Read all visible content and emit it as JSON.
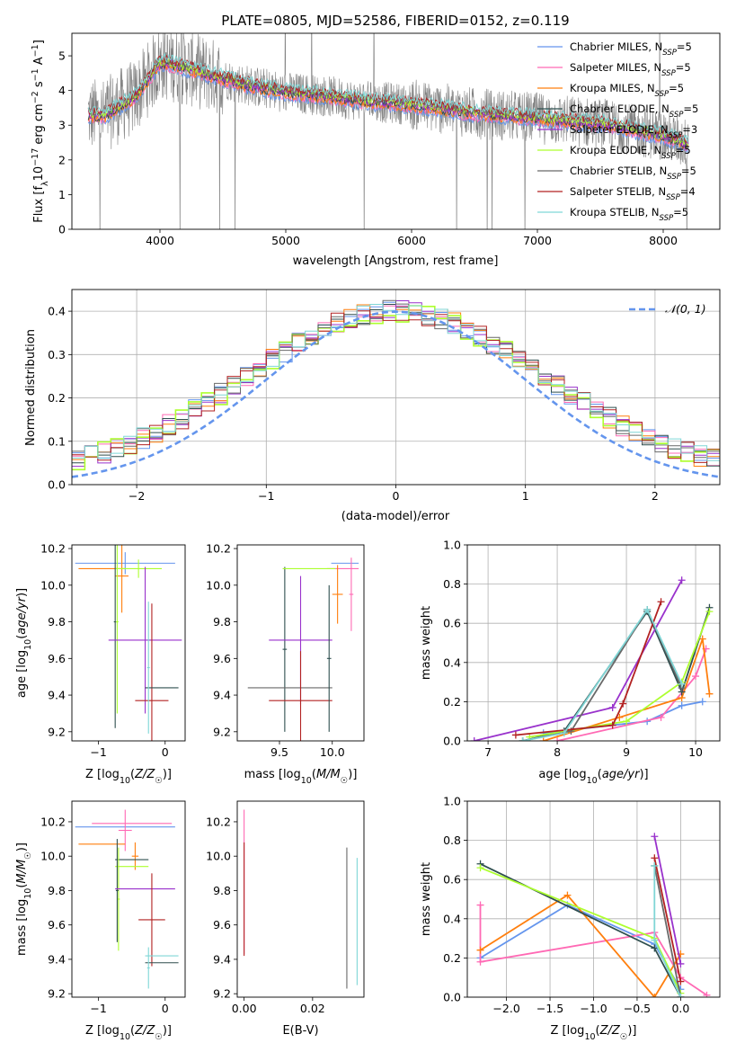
{
  "figure_title": "PLATE=0805, MJD=52586, FIBERID=0152, z=0.119",
  "colors": {
    "chabrier_miles": "#6495ed",
    "salpeter_miles": "#ff69b4",
    "kroupa_miles": "#ff7f0e",
    "chabrier_elodie": "#2f4f4f",
    "salpeter_elodie": "#9932cc",
    "kroupa_elodie": "#adff2f",
    "chabrier_stelib": "#696969",
    "salpeter_stelib": "#b22222",
    "kroupa_stelib": "#7fd6d6",
    "data": "#808080",
    "normal_curve": "#6495ed",
    "grid": "#b0b0b0"
  },
  "chart_data": [
    {
      "type": "line",
      "id": "spectrum",
      "xlabel": "wavelength [Angstrom, rest frame]",
      "ylabel": "Flux [f_λ 10^-17 erg cm^-2 s^-1 A^-1]",
      "xlim": [
        3300,
        8450
      ],
      "ylim": [
        0,
        5.65
      ],
      "xticks": [
        4000,
        5000,
        6000,
        7000,
        8000
      ],
      "yticks": [
        0,
        1,
        2,
        3,
        4,
        5
      ],
      "grid": false,
      "legend": "right",
      "continuum_x": [
        3430,
        3550,
        3700,
        3800,
        3900,
        3950,
        4000,
        4100,
        4300,
        4500,
        4700,
        5000,
        5300,
        5600,
        6000,
        6500,
        7000,
        7500,
        8000,
        8200
      ],
      "continuum_y": [
        3.3,
        3.25,
        3.6,
        3.8,
        4.3,
        4.55,
        4.8,
        4.75,
        4.55,
        4.35,
        4.15,
        3.95,
        3.85,
        3.7,
        3.6,
        3.35,
        3.2,
        3.05,
        2.7,
        2.45
      ],
      "series": [
        {
          "name": "Chabrier MILES, N_SSP=5",
          "label": "Chabrier MILES, N",
          "sub": "SSP",
          "suffix": "=5",
          "color_key": "chabrier_miles"
        },
        {
          "name": "Salpeter MILES, N_SSP=5",
          "label": "Salpeter MILES, N",
          "sub": "SSP",
          "suffix": "=5",
          "color_key": "salpeter_miles"
        },
        {
          "name": "Kroupa MILES, N_SSP=5",
          "label": "Kroupa MILES, N",
          "sub": "SSP",
          "suffix": "=5",
          "color_key": "kroupa_miles"
        },
        {
          "name": "Chabrier ELODIE, N_SSP=5",
          "label": "Chabrier ELODIE, N",
          "sub": "SSP",
          "suffix": "=5",
          "color_key": "chabrier_elodie"
        },
        {
          "name": "Salpeter ELODIE, N_SSP=3",
          "label": "Salpeter ELODIE, N",
          "sub": "SSP",
          "suffix": "=3",
          "color_key": "salpeter_elodie"
        },
        {
          "name": "Kroupa ELODIE, N_SSP=5",
          "label": "Kroupa ELODIE, N",
          "sub": "SSP",
          "suffix": "=5",
          "color_key": "kroupa_elodie"
        },
        {
          "name": "Chabrier STELIB, N_SSP=5",
          "label": "Chabrier STELIB, N",
          "sub": "SSP",
          "suffix": "=5",
          "color_key": "chabrier_stelib"
        },
        {
          "name": "Salpeter STELIB, N_SSP=4",
          "label": "Salpeter STELIB, N",
          "sub": "SSP",
          "suffix": "=4",
          "color_key": "salpeter_stelib"
        },
        {
          "name": "Kroupa STELIB, N_SSP=5",
          "label": "Kroupa STELIB, N",
          "sub": "SSP",
          "suffix": "=5",
          "color_key": "kroupa_stelib"
        }
      ]
    },
    {
      "type": "histogram",
      "id": "residuals",
      "xlabel": "(data-model)/error",
      "ylabel": "Normed distribution",
      "xlim": [
        -2.5,
        2.5
      ],
      "ylim": [
        0,
        0.45
      ],
      "xticks": [
        -2,
        -1,
        0,
        1,
        2
      ],
      "yticks": [
        0.0,
        0.1,
        0.2,
        0.3,
        0.4
      ],
      "grid": true,
      "legend": "top-right",
      "normal_label": "N(0,1)",
      "bin_width": 0.1,
      "x_start": -2.5
    },
    {
      "type": "errorbar",
      "id": "age_vs_z",
      "xlabel": "Z [log10(Z/Z☉)]",
      "ylabel": "age [log10(age/yr)]",
      "xlim": [
        -1.4,
        0.3
      ],
      "ylim": [
        9.15,
        10.22
      ],
      "xticks": [
        -1,
        0
      ],
      "yticks": [
        9.2,
        9.4,
        9.6,
        9.8,
        10.0,
        10.2
      ],
      "grid": false,
      "points": [
        {
          "x": -0.6,
          "xerr": 0.75,
          "y": 10.12,
          "yerr": 0.06,
          "color_key": "chabrier_miles"
        },
        {
          "x": -0.95,
          "xerr": 0.35,
          "y": 10.09,
          "yerr": 0.0,
          "color_key": "kroupa_miles"
        },
        {
          "x": -0.65,
          "xerr": 0.1,
          "y": 10.05,
          "yerr": 0.2,
          "color_key": "kroupa_miles"
        },
        {
          "x": -0.4,
          "xerr": 0.35,
          "y": 10.09,
          "yerr": 0.05,
          "color_key": "kroupa_elodie"
        },
        {
          "x": -0.75,
          "xerr": 0.02,
          "y": 9.8,
          "yerr": 0.58,
          "color_key": "chabrier_elodie"
        },
        {
          "x": -0.72,
          "xerr": 0.02,
          "y": 9.8,
          "yerr": 0.5,
          "color_key": "kroupa_elodie"
        },
        {
          "x": -0.3,
          "xerr": 0.55,
          "y": 9.7,
          "yerr": 0.4,
          "color_key": "salpeter_elodie"
        },
        {
          "x": -0.2,
          "xerr": 0.25,
          "y": 9.37,
          "yerr": 0.53,
          "color_key": "salpeter_stelib"
        },
        {
          "x": -0.05,
          "xerr": 0.25,
          "y": 9.44,
          "yerr": 0.0,
          "color_key": "chabrier_elodie"
        },
        {
          "x": -0.25,
          "xerr": 0.02,
          "y": 9.55,
          "yerr": 0.36,
          "color_key": "kroupa_stelib"
        }
      ]
    },
    {
      "type": "errorbar",
      "id": "age_vs_mass",
      "xlabel": "mass [log10(M/M☉)]",
      "ylabel": "",
      "xlim": [
        9.1,
        10.3
      ],
      "ylim": [
        9.15,
        10.22
      ],
      "xticks": [
        9.5,
        10.0
      ],
      "yticks": [
        9.2,
        9.4,
        9.6,
        9.8,
        10.0,
        10.2
      ],
      "grid": false,
      "points": [
        {
          "x": 10.12,
          "xerr": 0.13,
          "y": 10.12,
          "yerr": 0.0,
          "color_key": "chabrier_miles"
        },
        {
          "x": 10.1,
          "xerr": 0.15,
          "y": 10.09,
          "yerr": 0.0,
          "color_key": "salpeter_miles"
        },
        {
          "x": 10.05,
          "xerr": 0.05,
          "y": 9.95,
          "yerr": 0.16,
          "color_key": "kroupa_miles"
        },
        {
          "x": 9.55,
          "xerr": 0.02,
          "y": 9.65,
          "yerr": 0.45,
          "color_key": "chabrier_elodie"
        },
        {
          "x": 9.78,
          "xerr": 0.25,
          "y": 10.09,
          "yerr": 0.0,
          "color_key": "kroupa_elodie"
        },
        {
          "x": 9.7,
          "xerr": 0.3,
          "y": 9.7,
          "yerr": 0.35,
          "color_key": "salpeter_elodie"
        },
        {
          "x": 9.6,
          "xerr": 0.4,
          "y": 9.44,
          "yerr": 0.0,
          "color_key": "chabrier_stelib"
        },
        {
          "x": 9.7,
          "xerr": 0.3,
          "y": 9.37,
          "yerr": 0.27,
          "color_key": "salpeter_stelib"
        },
        {
          "x": 10.18,
          "xerr": 0.02,
          "y": 9.95,
          "yerr": 0.2,
          "color_key": "salpeter_miles"
        },
        {
          "x": 9.97,
          "xerr": 0.02,
          "y": 9.6,
          "yerr": 0.4,
          "color_key": "chabrier_elodie"
        }
      ]
    },
    {
      "type": "line",
      "id": "weight_vs_age",
      "xlabel": "age [log10(age/yr)]",
      "ylabel": "mass weight",
      "xlim": [
        6.7,
        10.35
      ],
      "ylim": [
        0,
        1.0
      ],
      "xticks": [
        7,
        8,
        9,
        10
      ],
      "yticks": [
        0.0,
        0.2,
        0.4,
        0.6,
        0.8,
        1.0
      ],
      "grid": true,
      "series": [
        {
          "color_key": "chabrier_miles",
          "x": [
            7.8,
            9.3,
            9.8,
            10.1
          ],
          "y": [
            0.04,
            0.1,
            0.18,
            0.2
          ]
        },
        {
          "color_key": "salpeter_miles",
          "x": [
            8.0,
            9.5,
            10.0,
            10.15
          ],
          "y": [
            0.0,
            0.12,
            0.33,
            0.47
          ]
        },
        {
          "color_key": "kroupa_miles",
          "x": [
            7.8,
            8.9,
            9.8,
            10.1,
            10.2
          ],
          "y": [
            0.0,
            0.12,
            0.22,
            0.52,
            0.24
          ]
        },
        {
          "color_key": "chabrier_elodie",
          "x": [
            7.5,
            8.1,
            9.3,
            9.8,
            10.2
          ],
          "y": [
            0.0,
            0.05,
            0.66,
            0.25,
            0.68
          ]
        },
        {
          "color_key": "salpeter_elodie",
          "x": [
            6.8,
            8.8,
            9.8
          ],
          "y": [
            0.0,
            0.17,
            0.82
          ]
        },
        {
          "color_key": "kroupa_elodie",
          "x": [
            7.6,
            9.0,
            9.8,
            10.2
          ],
          "y": [
            0.02,
            0.1,
            0.3,
            0.66
          ]
        },
        {
          "color_key": "chabrier_stelib",
          "x": [
            7.5,
            8.2,
            9.3,
            9.8
          ],
          "y": [
            0.0,
            0.05,
            0.67,
            0.27
          ]
        },
        {
          "color_key": "salpeter_stelib",
          "x": [
            7.4,
            8.8,
            8.95,
            9.5
          ],
          "y": [
            0.03,
            0.08,
            0.19,
            0.71
          ]
        },
        {
          "color_key": "kroupa_stelib",
          "x": [
            7.5,
            8.1,
            9.3,
            9.8
          ],
          "y": [
            0.0,
            0.04,
            0.67,
            0.29
          ]
        }
      ]
    },
    {
      "type": "errorbar",
      "id": "mass_vs_z",
      "xlabel": "Z [log10(Z/Z☉)]",
      "ylabel": "mass [log10(M/M☉)]",
      "xlim": [
        -1.4,
        0.3
      ],
      "ylim": [
        9.18,
        10.32
      ],
      "xticks": [
        -1,
        0
      ],
      "yticks": [
        9.2,
        9.4,
        9.6,
        9.8,
        10.0,
        10.2
      ],
      "grid": false,
      "points": [
        {
          "x": -0.6,
          "xerr": 0.75,
          "y": 10.17,
          "yerr": 0.0,
          "color_key": "chabrier_miles"
        },
        {
          "x": -0.5,
          "xerr": 0.6,
          "y": 10.19,
          "yerr": 0.0,
          "color_key": "salpeter_miles"
        },
        {
          "x": -0.6,
          "xerr": 0.1,
          "y": 10.15,
          "yerr": 0.12,
          "color_key": "salpeter_miles"
        },
        {
          "x": -0.95,
          "xerr": 0.35,
          "y": 10.07,
          "yerr": 0.0,
          "color_key": "kroupa_miles"
        },
        {
          "x": -0.45,
          "xerr": 0.05,
          "y": 10.0,
          "yerr": 0.08,
          "color_key": "kroupa_miles"
        },
        {
          "x": -0.5,
          "xerr": 0.25,
          "y": 9.98,
          "yerr": 0.0,
          "color_key": "chabrier_elodie"
        },
        {
          "x": -0.5,
          "xerr": 0.25,
          "y": 9.94,
          "yerr": 0.0,
          "color_key": "kroupa_elodie"
        },
        {
          "x": -0.7,
          "xerr": 0.02,
          "y": 9.75,
          "yerr": 0.3,
          "color_key": "kroupa_elodie"
        },
        {
          "x": -0.72,
          "xerr": 0.02,
          "y": 9.8,
          "yerr": 0.3,
          "color_key": "chabrier_elodie"
        },
        {
          "x": -0.3,
          "xerr": 0.45,
          "y": 9.81,
          "yerr": 0.0,
          "color_key": "salpeter_elodie"
        },
        {
          "x": -0.2,
          "xerr": 0.2,
          "y": 9.63,
          "yerr": 0.27,
          "color_key": "salpeter_stelib"
        },
        {
          "x": -0.05,
          "xerr": 0.25,
          "y": 9.42,
          "yerr": 0.0,
          "color_key": "kroupa_stelib"
        },
        {
          "x": -0.05,
          "xerr": 0.25,
          "y": 9.38,
          "yerr": 0.0,
          "color_key": "chabrier_elodie"
        },
        {
          "x": -0.25,
          "xerr": 0.02,
          "y": 9.35,
          "yerr": 0.12,
          "color_key": "kroupa_stelib"
        }
      ]
    },
    {
      "type": "errorbar",
      "id": "mass_vs_ebv",
      "xlabel": "E(B-V)",
      "ylabel": "",
      "xlim": [
        -0.002,
        0.035
      ],
      "ylim": [
        9.18,
        10.32
      ],
      "xticks": [
        0.0,
        0.02
      ],
      "yticks": [
        9.2,
        9.4,
        9.6,
        9.8,
        10.0,
        10.2
      ],
      "grid": false,
      "points": [
        {
          "x": 0.0,
          "xerr": 0.0,
          "y": 9.85,
          "yerr": 0.42,
          "color_key": "salpeter_miles"
        },
        {
          "x": 0.0,
          "xerr": 0.0,
          "y": 9.75,
          "yerr": 0.33,
          "color_key": "salpeter_stelib"
        },
        {
          "x": 0.03,
          "xerr": 0.0,
          "y": 9.64,
          "yerr": 0.41,
          "color_key": "chabrier_stelib"
        },
        {
          "x": 0.033,
          "xerr": 0.0,
          "y": 9.62,
          "yerr": 0.37,
          "color_key": "kroupa_stelib"
        }
      ]
    },
    {
      "type": "line",
      "id": "weight_vs_z",
      "xlabel": "Z [log10(Z/Z☉)]",
      "ylabel": "mass weight",
      "xlim": [
        -2.45,
        0.45
      ],
      "ylim": [
        0,
        1.0
      ],
      "xticks": [
        -2.0,
        -1.5,
        -1.0,
        -0.5,
        0.0
      ],
      "yticks": [
        0.0,
        0.2,
        0.4,
        0.6,
        0.8,
        1.0
      ],
      "grid": true,
      "series": [
        {
          "color_key": "chabrier_miles",
          "x": [
            -2.3,
            -1.3,
            -0.3,
            0.0
          ],
          "y": [
            0.2,
            0.47,
            0.27,
            0.04
          ]
        },
        {
          "color_key": "salpeter_miles",
          "x": [
            -2.3,
            -2.3,
            -0.3,
            0.0,
            0.3
          ],
          "y": [
            0.47,
            0.18,
            0.33,
            0.1,
            0.01
          ]
        },
        {
          "color_key": "kroupa_miles",
          "x": [
            -2.3,
            -1.3,
            -0.3,
            0.0
          ],
          "y": [
            0.24,
            0.52,
            0.0,
            0.22
          ]
        },
        {
          "color_key": "chabrier_elodie",
          "x": [
            -2.3,
            -0.3,
            0.0
          ],
          "y": [
            0.68,
            0.25,
            0.0
          ]
        },
        {
          "color_key": "salpeter_elodie",
          "x": [
            -0.3,
            0.0
          ],
          "y": [
            0.82,
            0.17
          ]
        },
        {
          "color_key": "kroupa_elodie",
          "x": [
            -2.3,
            -0.3,
            0.0
          ],
          "y": [
            0.66,
            0.3,
            0.02
          ]
        },
        {
          "color_key": "chabrier_stelib",
          "x": [
            -0.3,
            0.0
          ],
          "y": [
            0.67,
            0.0
          ]
        },
        {
          "color_key": "salpeter_stelib",
          "x": [
            -0.3,
            0.0
          ],
          "y": [
            0.71,
            0.08
          ]
        },
        {
          "color_key": "kroupa_stelib",
          "x": [
            -0.3,
            -0.3,
            0.0
          ],
          "y": [
            0.67,
            0.29,
            0.0
          ]
        }
      ]
    }
  ]
}
